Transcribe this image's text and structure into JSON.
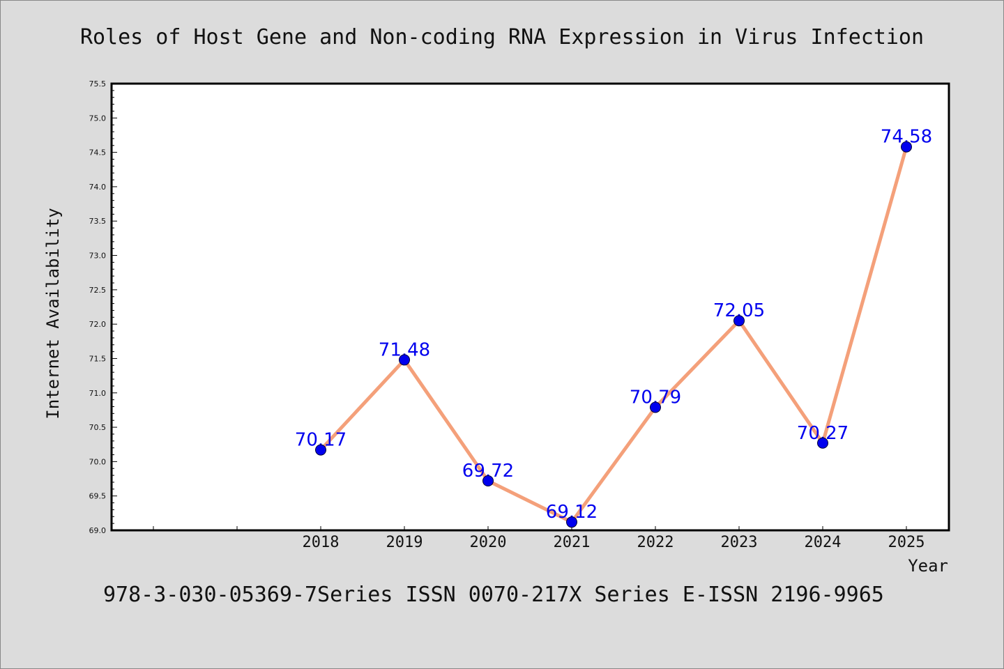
{
  "chart_data": {
    "type": "line",
    "title": "Roles of Host Gene and Non-coding RNA Expression in Virus Infection",
    "xlabel": "Year",
    "ylabel": "Internet Availability",
    "categories": [
      "2018",
      "2019",
      "2020",
      "2021",
      "2022",
      "2023",
      "2024",
      "2025"
    ],
    "x_tick_labels": [
      "",
      "",
      "2018",
      "2019",
      "2020",
      "2021",
      "2022",
      "2023",
      "2024",
      "2025"
    ],
    "values": [
      70.17,
      71.48,
      69.72,
      69.12,
      70.79,
      72.05,
      70.27,
      74.58
    ],
    "data_labels": [
      "70.17",
      "71.48",
      "69.72",
      "69.12",
      "70.79",
      "72.05",
      "70.27",
      "74.58"
    ],
    "ylim": [
      69.0,
      75.5
    ],
    "y_ticks": [
      "69.0",
      "69.5",
      "70.0",
      "70.5",
      "71.0",
      "71.5",
      "72.0",
      "72.5",
      "73.0",
      "73.5",
      "74.0",
      "74.5",
      "75.0",
      "75.5"
    ],
    "grid": false,
    "legend": "none",
    "line_color": "#f4a07a",
    "marker_color": "#0000ee"
  },
  "footer": "978-3-030-05369-7Series ISSN 0070-217X Series E-ISSN 2196-9965"
}
